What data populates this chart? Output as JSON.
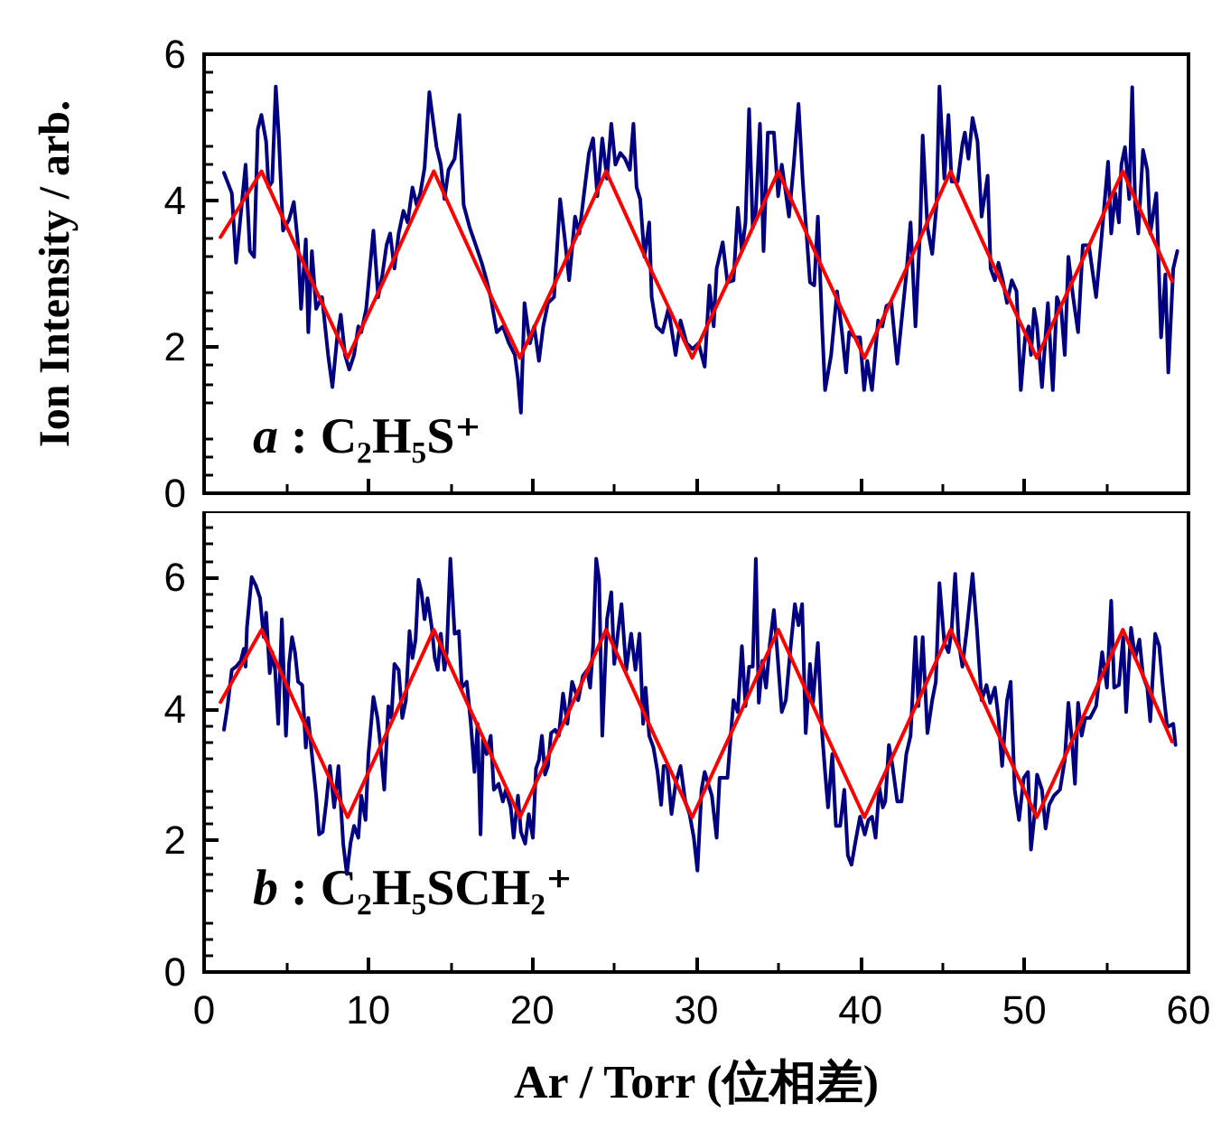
{
  "chart_data": [
    {
      "type": "line",
      "ylabel": "Ion Intensity / arb.",
      "annotations": [
        "a : C₂H₅S⁺"
      ],
      "xlim": [
        0,
        60
      ],
      "xticks": [
        0,
        10,
        20,
        30,
        40,
        50,
        60
      ],
      "ylim": [
        0,
        6
      ],
      "yticks": [
        0,
        2,
        4,
        6
      ],
      "tick_labels": "y",
      "marker": "none",
      "line_style": "solid",
      "series": [
        {
          "color": "#000080",
          "x": [
            1.21,
            1.69,
            1.95,
            2.24,
            2.53,
            2.79,
            3.05,
            3.27,
            3.49,
            3.78,
            3.93,
            4.15,
            4.37,
            4.55,
            4.81,
            5.18,
            5.47,
            5.73,
            5.91,
            6.2,
            6.35,
            6.57,
            6.83,
            7.19,
            7.56,
            7.82,
            8.11,
            8.33,
            8.59,
            8.85,
            9.14,
            9.4,
            9.58,
            9.88,
            10.32,
            10.61,
            10.87,
            11.12,
            11.34,
            11.6,
            11.86,
            12.15,
            12.41,
            12.7,
            12.96,
            13.18,
            13.44,
            13.73,
            13.91,
            14.17,
            14.43,
            14.65,
            14.9,
            15.27,
            15.56,
            15.82,
            16.19,
            16.56,
            16.92,
            17.22,
            17.47,
            17.84,
            18.21,
            18.58,
            18.94,
            19.13,
            19.31,
            19.53,
            19.86,
            20.12,
            20.41,
            20.67,
            20.96,
            21.33,
            21.7,
            21.99,
            22.25,
            22.61,
            22.87,
            23.16,
            23.46,
            23.71,
            23.97,
            24.27,
            24.56,
            24.82,
            25.07,
            25.37,
            25.66,
            25.95,
            26.17,
            26.36,
            26.58,
            26.84,
            27.13,
            27.28,
            27.57,
            27.94,
            28.3,
            28.74,
            29.04,
            29.41,
            29.77,
            30.14,
            30.51,
            30.8,
            31.06,
            31.24,
            31.61,
            31.9,
            32.27,
            32.53,
            32.78,
            33,
            33.22,
            33.44,
            33.63,
            33.88,
            34.1,
            34.36,
            34.73,
            34.99,
            35.21,
            35.46,
            35.65,
            35.94,
            36.23,
            36.49,
            36.67,
            36.93,
            37.19,
            37.41,
            37.67,
            37.85,
            38.22,
            38.58,
            38.88,
            39.13,
            39.32,
            39.68,
            39.98,
            40.23,
            40.42,
            40.71,
            41.08,
            41.34,
            41.59,
            41.89,
            42.25,
            42.55,
            42.8,
            43.06,
            43.36,
            43.65,
            43.8,
            44.09,
            44.38,
            44.64,
            44.82,
            45.12,
            45.37,
            45.56,
            45.93,
            46.22,
            46.37,
            46.59,
            46.84,
            47.14,
            47.39,
            47.76,
            47.94,
            48.2,
            48.42,
            48.68,
            48.94,
            49.23,
            49.52,
            49.78,
            50.04,
            50.26,
            50.4,
            50.59,
            50.77,
            51.07,
            51.43,
            51.73,
            51.98,
            52.24,
            52.46,
            52.68,
            52.97,
            53.27,
            53.56,
            53.93,
            54.37,
            54.66,
            55.1,
            55.29,
            55.54,
            55.76,
            55.91,
            56.13,
            56.39,
            56.57,
            56.75,
            56.94,
            57.23,
            57.49,
            57.67,
            58.04,
            58.33,
            58.59,
            58.77,
            59.07,
            59.32
          ],
          "values": [
            4.38,
            4.1,
            3.15,
            3.82,
            4.49,
            3.31,
            3.23,
            4.97,
            5.17,
            4.81,
            4.18,
            4.26,
            5.56,
            4.89,
            3.59,
            3.74,
            3.98,
            3.39,
            2.52,
            3.47,
            2.2,
            3.31,
            2.52,
            2.68,
            1.89,
            1.45,
            2.13,
            2.44,
            1.89,
            1.69,
            1.89,
            2.28,
            2.2,
            2.52,
            3.59,
            2.68,
            2.99,
            3.39,
            3.55,
            3.07,
            3.55,
            3.86,
            3.7,
            4.18,
            3.94,
            4.1,
            4.45,
            5.48,
            5.17,
            4.73,
            4.49,
            4.02,
            4.42,
            4.57,
            5.17,
            3.94,
            3.63,
            3.39,
            3.15,
            2.91,
            2.68,
            2.2,
            2.28,
            2.05,
            1.89,
            1.57,
            1.1,
            2.6,
            2.05,
            2.28,
            1.81,
            2.28,
            2.6,
            2.68,
            4.02,
            3.47,
            2.91,
            3.78,
            3.55,
            4.1,
            4.65,
            4.85,
            4.06,
            4.85,
            4.3,
            5.05,
            4.49,
            4.65,
            4.57,
            4.42,
            5.05,
            4.18,
            4.02,
            3.23,
            3.7,
            2.68,
            2.28,
            2.2,
            2.52,
            1.89,
            2.36,
            2.05,
            1.97,
            2.05,
            1.73,
            2.84,
            2.28,
            3.07,
            3.43,
            2.88,
            2.91,
            3.9,
            3.31,
            3.7,
            5.25,
            3.63,
            3.86,
            5.05,
            3.31,
            4.93,
            4.93,
            4.06,
            4.49,
            4.1,
            3.78,
            4.49,
            5.32,
            4.26,
            3.7,
            2.88,
            2.84,
            3.78,
            2.28,
            1.41,
            1.89,
            2.76,
            2.2,
            1.65,
            2.2,
            2.13,
            2.13,
            1.41,
            1.81,
            1.41,
            2.36,
            2.28,
            2.56,
            2.6,
            1.77,
            2.44,
            2.99,
            3.7,
            2.28,
            3.63,
            4.89,
            3.63,
            3.27,
            3.94,
            5.56,
            4.3,
            5.17,
            4.26,
            4.26,
            4.77,
            4.93,
            4.57,
            5.13,
            4.81,
            3.78,
            4.34,
            3.07,
            2.91,
            3.15,
            2.91,
            2.6,
            2.91,
            2.76,
            1.41,
            2.13,
            2.28,
            1.89,
            2.52,
            2.28,
            1.45,
            2.6,
            1.41,
            2.68,
            2.52,
            1.89,
            3.23,
            2.68,
            2.2,
            3.39,
            3.39,
            2.68,
            3.39,
            4.53,
            3.55,
            4.1,
            3.7,
            4.49,
            4.73,
            4.02,
            5.55,
            3.94,
            3.55,
            4.69,
            4.42,
            3.55,
            4.1,
            2.13,
            2.99,
            1.65,
            3.07,
            3.31
          ]
        },
        {
          "color": "#ff0000",
          "x": [
            1,
            3.5,
            6.1,
            8.75,
            11.4,
            14,
            16.6,
            19.25,
            21.9,
            24.5,
            27.1,
            29.75,
            32.4,
            35,
            37.6,
            40.25,
            42.9,
            45.5,
            48.1,
            50.75,
            53.4,
            56,
            59
          ],
          "values": [
            3.5,
            4.4,
            3.12,
            1.85,
            3.12,
            4.4,
            3.12,
            1.85,
            3.12,
            4.4,
            3.12,
            1.85,
            3.12,
            4.4,
            3.12,
            1.85,
            3.12,
            4.4,
            3.12,
            1.85,
            3.12,
            4.4,
            2.9
          ]
        }
      ]
    },
    {
      "type": "line",
      "xlabel": "Ar / Torr (位相差)",
      "annotations": [
        "b : C₂H₅SCH₂⁺"
      ],
      "xlim": [
        0,
        60
      ],
      "xticks": [
        0,
        10,
        20,
        30,
        40,
        50,
        60
      ],
      "ylim": [
        0,
        7
      ],
      "yticks": [
        0,
        2,
        4,
        6
      ],
      "marker": "none",
      "line_style": "solid",
      "series": [
        {
          "color": "#000080",
          "x": [
            1.21,
            1.43,
            1.69,
            1.95,
            2.24,
            2.42,
            2.53,
            2.61,
            2.9,
            3.16,
            3.41,
            3.63,
            3.78,
            4,
            4.15,
            4.33,
            4.52,
            4.74,
            4.99,
            5.18,
            5.36,
            5.54,
            5.73,
            5.98,
            6.2,
            6.35,
            6.57,
            6.83,
            7.01,
            7.23,
            7.45,
            7.67,
            7.93,
            8.19,
            8.48,
            8.7,
            8.92,
            9.14,
            9.4,
            9.58,
            9.84,
            10.02,
            10.32,
            10.57,
            10.76,
            10.98,
            11.23,
            11.42,
            11.6,
            11.86,
            12.08,
            12.3,
            12.52,
            12.7,
            12.89,
            13.07,
            13.25,
            13.44,
            13.62,
            13.88,
            14.06,
            14.24,
            14.43,
            14.65,
            14.79,
            15.01,
            15.27,
            15.53,
            15.71,
            16.01,
            16.26,
            16.48,
            16.67,
            16.85,
            17,
            17.22,
            17.47,
            17.66,
            17.95,
            18.21,
            18.39,
            18.69,
            18.87,
            19.13,
            19.31,
            19.57,
            19.79,
            20.04,
            20.23,
            20.41,
            20.59,
            20.78,
            20.96,
            21.15,
            21.4,
            21.62,
            21.88,
            22.14,
            22.43,
            22.8,
            23.09,
            23.35,
            23.53,
            23.71,
            23.9,
            24.08,
            24.27,
            24.56,
            24.82,
            25,
            25.26,
            25.44,
            25.73,
            26.03,
            26.29,
            26.54,
            26.76,
            26.91,
            27.13,
            27.39,
            27.64,
            27.86,
            28.01,
            28.23,
            28.49,
            28.74,
            29.04,
            29.33,
            29.59,
            29.85,
            30.07,
            30.32,
            30.51,
            30.95,
            31.24,
            31.42,
            31.9,
            32.27,
            32.53,
            32.78,
            33,
            33.22,
            33.44,
            33.63,
            33.81,
            34.03,
            34.25,
            34.47,
            34.73,
            34.91,
            35.21,
            35.46,
            35.72,
            36.01,
            36.23,
            36.45,
            36.67,
            36.93,
            37.11,
            37.41,
            37.67,
            37.85,
            38.03,
            38.29,
            38.51,
            38.77,
            39.02,
            39.24,
            39.46,
            39.68,
            39.98,
            40.27,
            40.49,
            40.71,
            40.93,
            41.15,
            41.37,
            41.52,
            41.74,
            41.96,
            42.25,
            42.51,
            42.8,
            43.06,
            43.36,
            43.54,
            43.8,
            44.09,
            44.38,
            44.6,
            44.82,
            45.12,
            45.37,
            45.56,
            45.78,
            46,
            46.22,
            46.48,
            46.84,
            47.1,
            47.39,
            47.69,
            47.91,
            48.2,
            48.42,
            48.64,
            48.94,
            49.16,
            49.41,
            49.67,
            49.96,
            50.22,
            50.4,
            50.62,
            50.77,
            51.07,
            51.29,
            51.51,
            51.8,
            52.17,
            52.46,
            52.68,
            52.9,
            53.08,
            53.27,
            53.49,
            53.71,
            54,
            54.37,
            54.74,
            55.03,
            55.29,
            55.47,
            55.76,
            56.02,
            56.2,
            56.5,
            56.75,
            57.01,
            57.23,
            57.49,
            57.67,
            57.97,
            58.22,
            58.41,
            58.7,
            59.07,
            59.21
          ],
          "values": [
            3.68,
            4.04,
            4.59,
            4.64,
            4.73,
            4.91,
            4.64,
            5.23,
            6,
            5.87,
            5.68,
            5.09,
            5.46,
            4.54,
            4.86,
            4.59,
            3.77,
            5.36,
            3.59,
            4.68,
            5.09,
            4.86,
            4.41,
            4.36,
            3.41,
            3.86,
            3.31,
            2.68,
            2.09,
            2.13,
            2.59,
            3.13,
            2.5,
            3.13,
            1.95,
            1.49,
            1.95,
            2.22,
            2.04,
            2.68,
            2.31,
            3.31,
            4.18,
            3.86,
            3.41,
            2.77,
            4.04,
            3.86,
            4.68,
            4.59,
            3.86,
            4.13,
            5.18,
            4.77,
            5.05,
            5.96,
            5.77,
            5.36,
            5.68,
            5.23,
            4.77,
            4.59,
            5.14,
            4.59,
            4.86,
            6.28,
            5.14,
            5.18,
            4.32,
            4.41,
            3.77,
            3.04,
            3.77,
            2.09,
            3.54,
            3.31,
            3.59,
            2.77,
            2.86,
            2.59,
            2.77,
            2.5,
            2.04,
            2.68,
            2.13,
            1.95,
            2.4,
            2.04,
            3.09,
            3.22,
            3.59,
            3,
            3.13,
            3.63,
            3.68,
            3.59,
            4.23,
            3.77,
            4.41,
            4.13,
            4.5,
            4.59,
            4.32,
            4.95,
            6.28,
            5.96,
            3.59,
            5.36,
            5.77,
            4.68,
            5.23,
            5.59,
            4.59,
            5.14,
            4.59,
            5.14,
            3.77,
            4.32,
            3.59,
            3.41,
            3.04,
            2.54,
            3.13,
            3.13,
            2.4,
            2.86,
            3.13,
            2.59,
            2.4,
            2.04,
            1.54,
            2.77,
            3.04,
            2.68,
            2.04,
            2.95,
            2.95,
            4.13,
            3.95,
            4.95,
            4.04,
            4.64,
            4.64,
            6.28,
            4.09,
            4.73,
            4.32,
            4.95,
            5.5,
            4.95,
            3.95,
            4.13,
            4.86,
            5.59,
            5.27,
            5.59,
            3.63,
            4.68,
            4.09,
            5,
            3.63,
            3.04,
            2.5,
            3.31,
            2.22,
            2.22,
            2.77,
            1.77,
            1.63,
            1.95,
            2.36,
            2.09,
            2.31,
            2.36,
            2.04,
            2.81,
            2.5,
            2.59,
            3.45,
            3.13,
            2.59,
            2.59,
            3.31,
            3.59,
            5.09,
            4.04,
            5.09,
            3.63,
            4.13,
            4.41,
            5.91,
            5,
            4.86,
            5.18,
            6.05,
            5,
            4.64,
            5.18,
            6.05,
            5.23,
            4.13,
            4.36,
            4.09,
            4.32,
            3.86,
            3.13,
            4.13,
            4.41,
            2.77,
            2.31,
            2.95,
            3.04,
            1.86,
            2.4,
            3,
            2.77,
            2.18,
            2.54,
            2.68,
            2.77,
            3.22,
            4.09,
            3.5,
            2.86,
            4.09,
            3.59,
            3.86,
            3.86,
            4.04,
            4.86,
            4.32,
            5.64,
            4.32,
            4.36,
            5.09,
            3.95,
            5.23,
            4.77,
            5.05,
            4.5,
            4.32,
            3.81,
            5.14,
            4.95,
            4.41,
            3.72,
            3.77,
            3.45
          ]
        },
        {
          "color": "#ff0000",
          "x": [
            1,
            3.5,
            6.1,
            8.75,
            11.4,
            14,
            16.6,
            19.25,
            21.9,
            24.5,
            27.1,
            29.75,
            32.4,
            35,
            37.6,
            40.25,
            42.9,
            45.5,
            48.1,
            50.75,
            53.4,
            56,
            59
          ],
          "values": [
            4.1,
            5.2,
            3.78,
            2.35,
            3.78,
            5.2,
            3.78,
            2.35,
            3.78,
            5.2,
            3.78,
            2.35,
            3.78,
            5.2,
            3.78,
            2.35,
            3.78,
            5.2,
            3.78,
            2.35,
            3.78,
            5.2,
            3.5
          ]
        }
      ]
    }
  ]
}
